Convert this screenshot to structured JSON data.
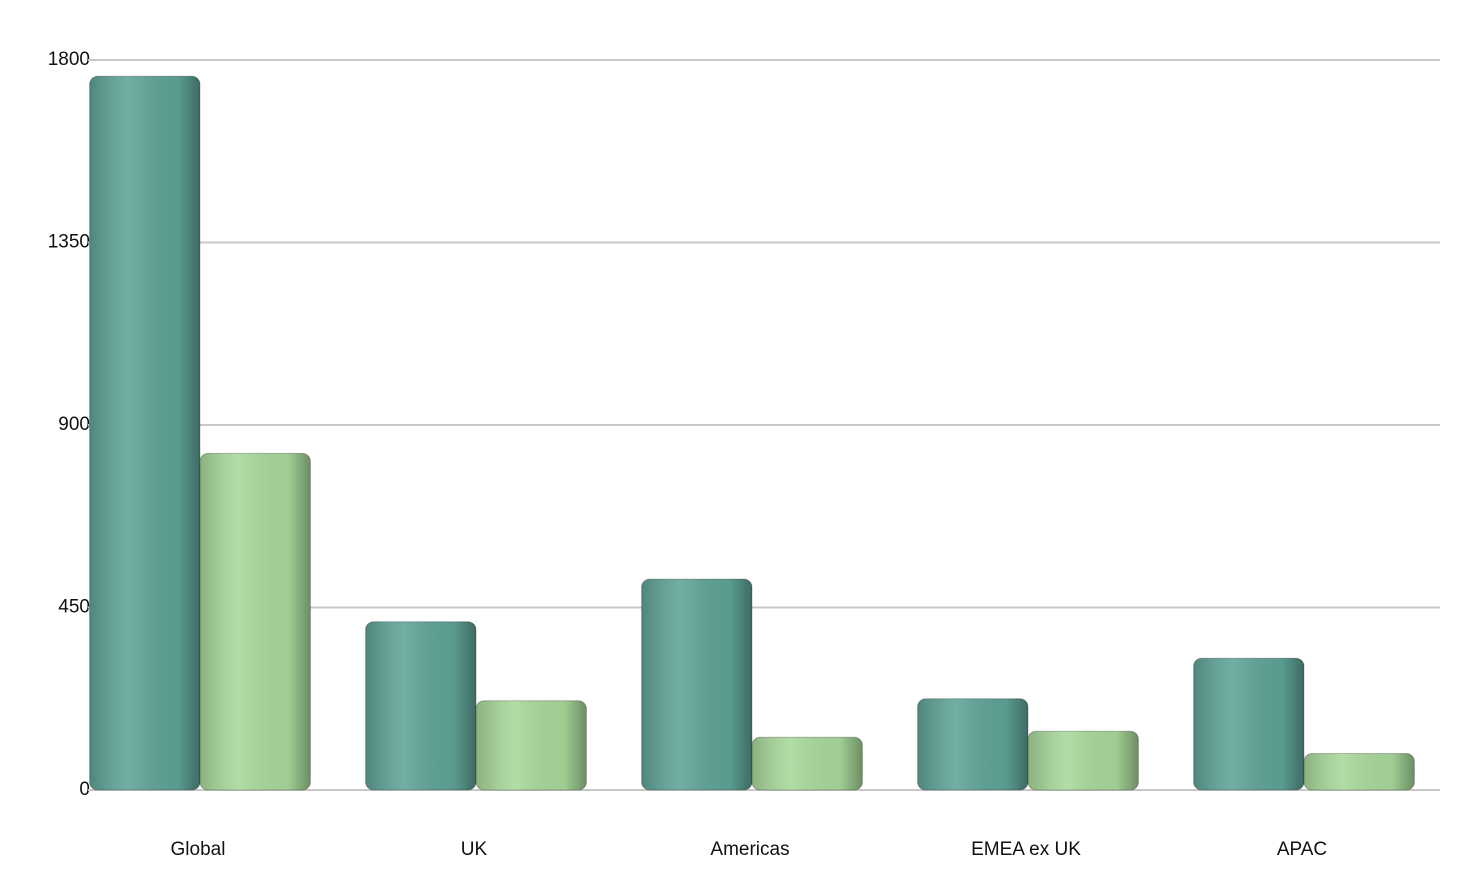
{
  "chart_data": {
    "type": "bar",
    "categories": [
      "Global",
      "UK",
      "Americas",
      "EMEA ex UK",
      "APAC"
    ],
    "series": [
      {
        "color": "#5fa397",
        "values": [
          1760,
          415,
          520,
          225,
          325
        ]
      },
      {
        "color": "#a8d89a",
        "values": [
          830,
          220,
          130,
          145,
          90
        ]
      }
    ],
    "ylim": [
      0,
      1800
    ],
    "yticks": [
      0,
      450,
      900,
      1350,
      1800
    ],
    "grid": true
  }
}
